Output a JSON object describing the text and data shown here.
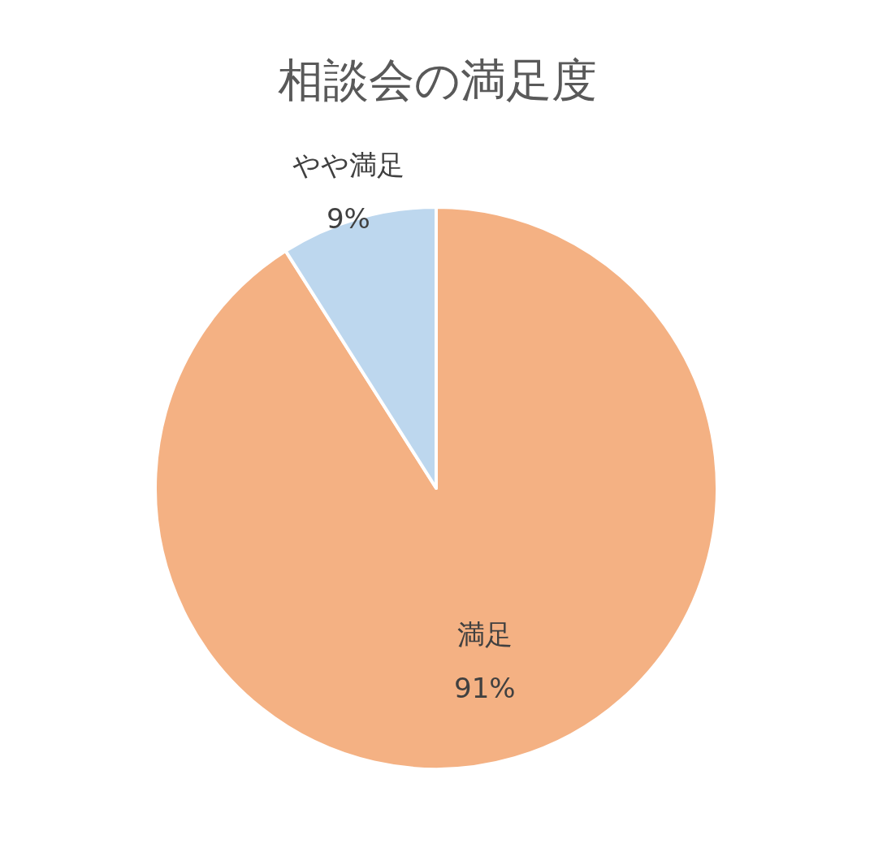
{
  "chart_data": {
    "type": "pie",
    "title": "相談会の満足度",
    "categories": [
      "満足",
      "やや満足"
    ],
    "values": [
      91,
      9
    ],
    "colors": [
      "#f4b183",
      "#bdd7ee"
    ],
    "value_labels": [
      "91%",
      "9%"
    ]
  }
}
